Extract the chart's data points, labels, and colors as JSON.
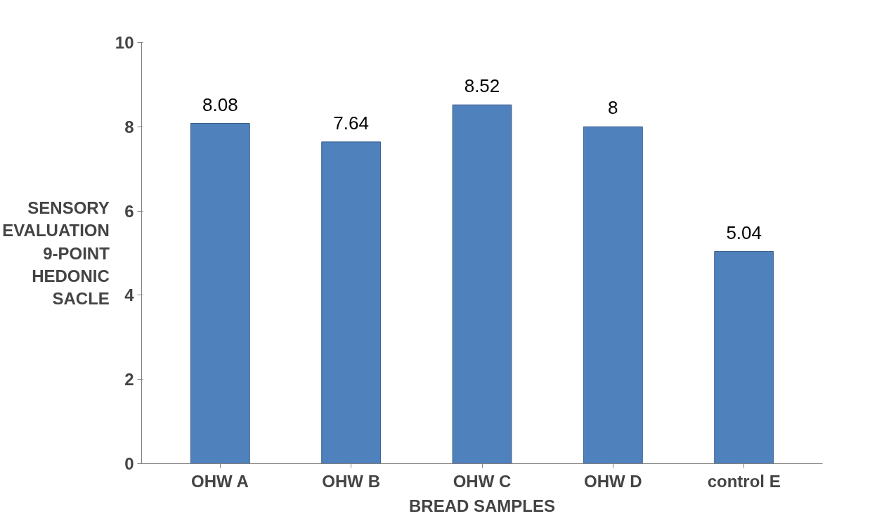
{
  "chart_data": {
    "type": "bar",
    "xlabel": "BREAD SAMPLES",
    "ylabel": "SENSORY EVALUATION 9-POINT HEDONIC SACLE",
    "categories": [
      "OHW A",
      "OHW B",
      "OHW C",
      "OHW D",
      "control E"
    ],
    "values": [
      8.08,
      7.64,
      8.52,
      8,
      5.04
    ],
    "color": "#4f81bd",
    "ylim": [
      0,
      10
    ],
    "yticks": [
      0,
      2,
      4,
      6,
      8,
      10
    ],
    "data_labels": true,
    "grid": false
  }
}
